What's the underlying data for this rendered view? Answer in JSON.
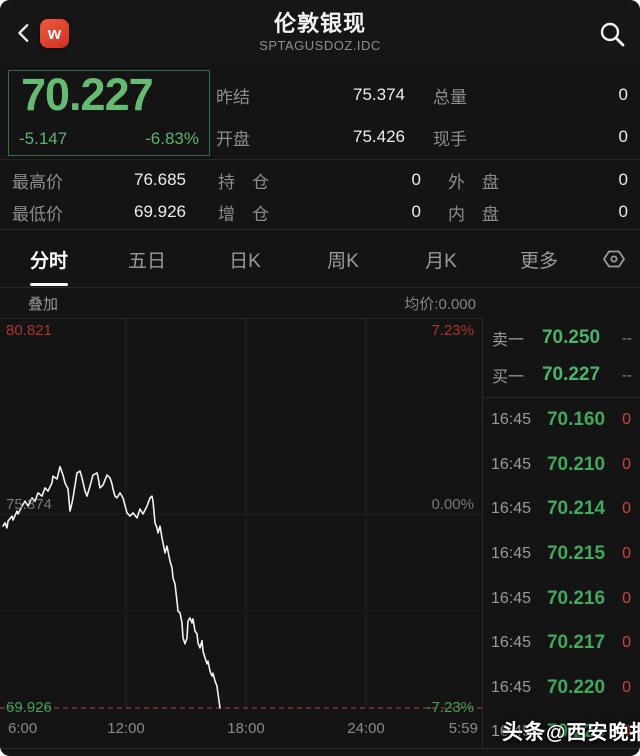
{
  "header": {
    "title": "伦敦银现",
    "subtitle": "SPTAGUSDOZ.IDC",
    "app_badge": "w"
  },
  "quote": {
    "last": "70.227",
    "change": "-5.147",
    "change_pct": "-6.83%",
    "top_fields": [
      {
        "label": "昨结",
        "value": "75.374"
      },
      {
        "label": "总量",
        "value": "0"
      },
      {
        "label": "开盘",
        "value": "75.426"
      },
      {
        "label": "现手",
        "value": "0"
      }
    ],
    "bottom_fields": [
      {
        "label": "最高价",
        "value": "76.685"
      },
      {
        "label": "持　仓",
        "value": "0"
      },
      {
        "label": "外　盘",
        "value": "0"
      },
      {
        "label": "最低价",
        "value": "69.926"
      },
      {
        "label": "增　仓",
        "value": "0"
      },
      {
        "label": "内　盘",
        "value": "0"
      }
    ]
  },
  "tabs": {
    "items": [
      {
        "label": "分时"
      },
      {
        "label": "五日"
      },
      {
        "label": "日K"
      },
      {
        "label": "周K"
      },
      {
        "label": "月K"
      },
      {
        "label": "更多"
      }
    ],
    "active_index": 0
  },
  "subbar": {
    "overlay_label": "叠加",
    "avg_label": "均价:0.000"
  },
  "chart": {
    "y_top_label": "80.821",
    "pct_top_label": "7.23%",
    "y_mid_label": "75.374",
    "pct_mid_label": "0.00%",
    "y_bottom_label": "69.926",
    "pct_bottom_label": "-7.23%",
    "x_labels": [
      "6:00",
      "12:00",
      "18:00",
      "24:00",
      "5:59"
    ]
  },
  "chart_data": {
    "type": "line",
    "title": "伦敦银现 分时走势",
    "x_axis_ticks": [
      "6:00",
      "12:00",
      "18:00",
      "24:00",
      "5:59"
    ],
    "y_axis_max": 80.821,
    "y_axis_mid": 75.374,
    "y_axis_min": 69.926,
    "pct_max": 7.23,
    "pct_min": -7.23,
    "prev_close": 75.374,
    "open": 75.426,
    "high": 76.685,
    "low": 69.926,
    "last": 70.227,
    "avg_price": 0.0,
    "points": [
      [
        3,
        75.02
      ],
      [
        5,
        75.11
      ],
      [
        7,
        74.97
      ],
      [
        8,
        75.16
      ],
      [
        12,
        75.3
      ],
      [
        13,
        75.19
      ],
      [
        17,
        75.44
      ],
      [
        18,
        75.36
      ],
      [
        22,
        75.58
      ],
      [
        25,
        75.72
      ],
      [
        28,
        75.58
      ],
      [
        32,
        75.81
      ],
      [
        35,
        75.72
      ],
      [
        38,
        75.95
      ],
      [
        42,
        75.86
      ],
      [
        45,
        76.09
      ],
      [
        48,
        76.0
      ],
      [
        52,
        76.23
      ],
      [
        53,
        76.42
      ],
      [
        57,
        76.34
      ],
      [
        60,
        76.685
      ],
      [
        63,
        76.45
      ],
      [
        65,
        76.23
      ],
      [
        68,
        76.06
      ],
      [
        70,
        75.44
      ],
      [
        72,
        75.67
      ],
      [
        73,
        75.81
      ],
      [
        77,
        76.51
      ],
      [
        80,
        76.56
      ],
      [
        82,
        76.37
      ],
      [
        85,
        76.0
      ],
      [
        87,
        75.86
      ],
      [
        90,
        76.14
      ],
      [
        93,
        76.45
      ],
      [
        97,
        76.51
      ],
      [
        98,
        76.4
      ],
      [
        100,
        76.09
      ],
      [
        103,
        76.17
      ],
      [
        107,
        76.45
      ],
      [
        110,
        76.37
      ],
      [
        112,
        76.2
      ],
      [
        113,
        76.06
      ],
      [
        115,
        75.86
      ],
      [
        117,
        75.81
      ],
      [
        120,
        75.95
      ],
      [
        123,
        75.81
      ],
      [
        127,
        75.39
      ],
      [
        130,
        75.3
      ],
      [
        133,
        75.39
      ],
      [
        137,
        75.25
      ],
      [
        140,
        75.5
      ],
      [
        143,
        75.36
      ],
      [
        147,
        75.58
      ],
      [
        150,
        75.81
      ],
      [
        152,
        75.86
      ],
      [
        153,
        75.72
      ],
      [
        155,
        75.11
      ],
      [
        157,
        74.97
      ],
      [
        158,
        74.83
      ],
      [
        160,
        75.02
      ],
      [
        162,
        74.69
      ],
      [
        163,
        74.55
      ],
      [
        165,
        74.27
      ],
      [
        167,
        74.46
      ],
      [
        168,
        74.32
      ],
      [
        170,
        74.04
      ],
      [
        172,
        73.85
      ],
      [
        173,
        73.57
      ],
      [
        175,
        73.4
      ],
      [
        177,
        72.92
      ],
      [
        178,
        72.64
      ],
      [
        180,
        72.59
      ],
      [
        182,
        72.31
      ],
      [
        183,
        71.89
      ],
      [
        185,
        71.72
      ],
      [
        187,
        71.89
      ],
      [
        188,
        72.36
      ],
      [
        190,
        72.45
      ],
      [
        192,
        72.31
      ],
      [
        193,
        72.42
      ],
      [
        195,
        72.08
      ],
      [
        197,
        72.0
      ],
      [
        198,
        71.75
      ],
      [
        200,
        71.61
      ],
      [
        202,
        71.81
      ],
      [
        203,
        71.52
      ],
      [
        205,
        71.33
      ],
      [
        207,
        71.16
      ],
      [
        208,
        71.24
      ],
      [
        210,
        70.96
      ],
      [
        212,
        70.82
      ],
      [
        213,
        70.9
      ],
      [
        215,
        70.68
      ],
      [
        217,
        70.54
      ],
      [
        218,
        70.32
      ],
      [
        220,
        69.93
      ]
    ]
  },
  "order_book": {
    "rows": [
      {
        "label": "卖一",
        "price": "70.250",
        "vol": "--"
      },
      {
        "label": "买一",
        "price": "70.227",
        "vol": "--"
      }
    ]
  },
  "trades": [
    {
      "time": "16:45",
      "price": "70.160",
      "vol": "0"
    },
    {
      "time": "16:45",
      "price": "70.210",
      "vol": "0"
    },
    {
      "time": "16:45",
      "price": "70.214",
      "vol": "0"
    },
    {
      "time": "16:45",
      "price": "70.215",
      "vol": "0"
    },
    {
      "time": "16:45",
      "price": "70.216",
      "vol": "0"
    },
    {
      "time": "16:45",
      "price": "70.217",
      "vol": "0"
    },
    {
      "time": "16:45",
      "price": "70.220",
      "vol": "0"
    },
    {
      "time": "16:45",
      "price": "70.225",
      "vol": "0"
    }
  ],
  "watermark": {
    "prefix": "头条",
    "suffix": "@西安晚报"
  },
  "colors": {
    "price_green": "#66bb73",
    "list_green": "#43a75c",
    "axis_green": "#3ea155",
    "axis_red": "#ab362b",
    "vol_red": "#c94438",
    "badge_red": "#e14b33",
    "line_white": "#f2f2f2",
    "background": "#141414"
  }
}
